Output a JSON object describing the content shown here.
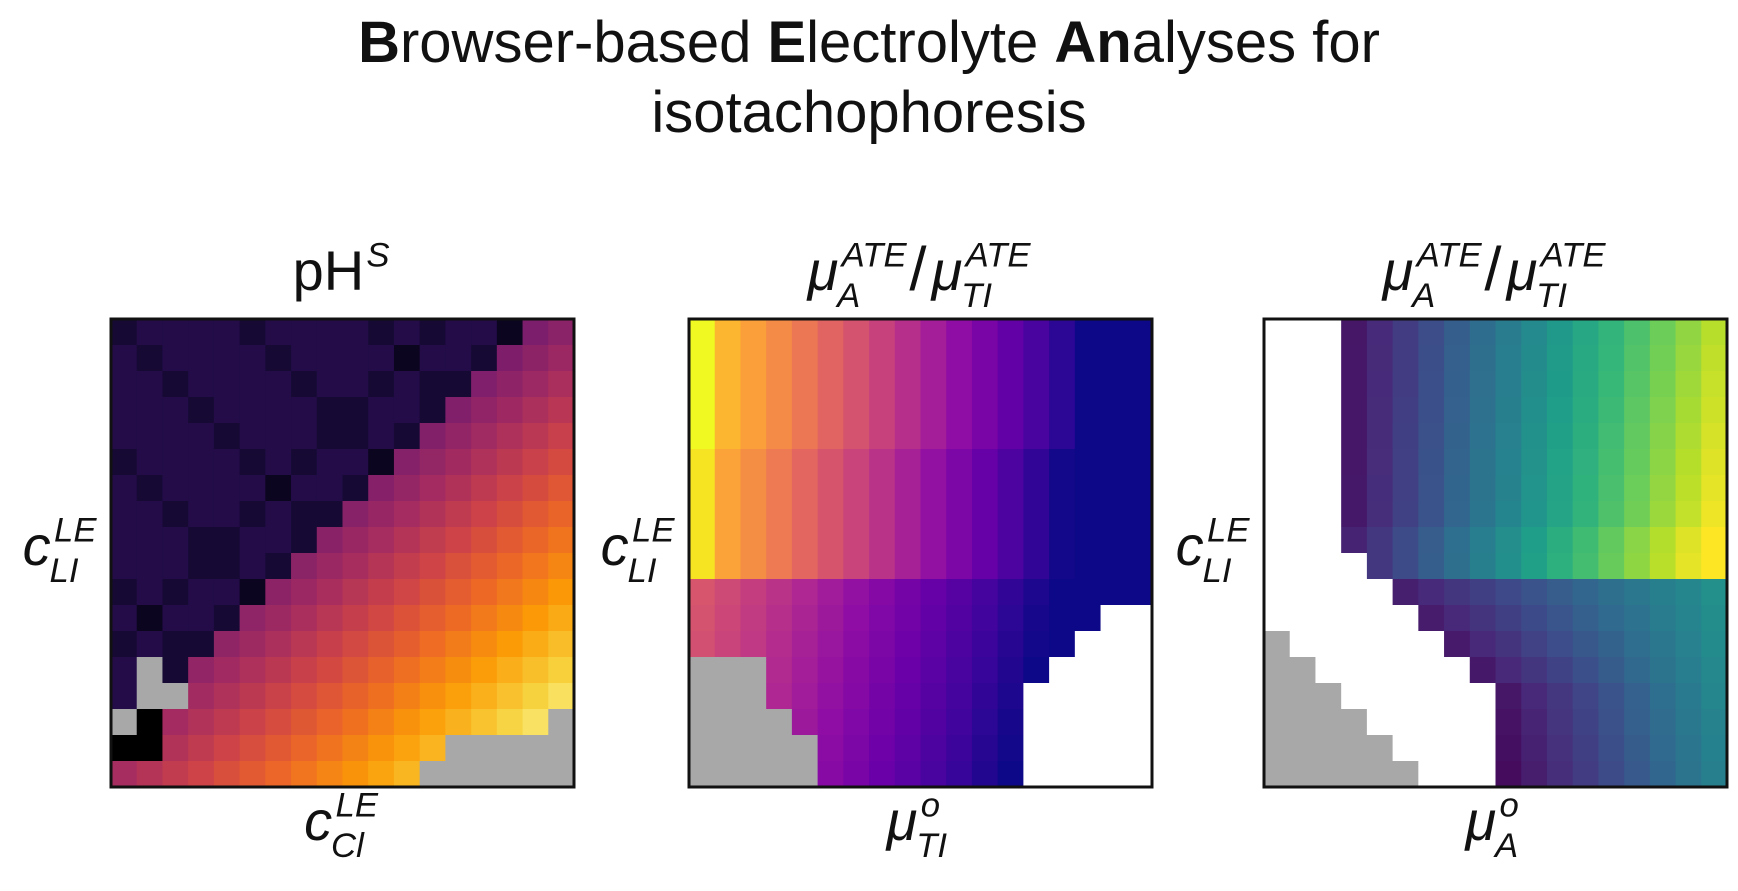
{
  "header": {
    "title_line1": [
      {
        "text": "B",
        "bold": true
      },
      {
        "text": "rowser-based "
      },
      {
        "text": "E",
        "bold": true
      },
      {
        "text": "lectrolyte "
      },
      {
        "text": "An",
        "bold": true
      },
      {
        "text": "alyses for"
      }
    ],
    "title_line2": "isotachophoresis"
  },
  "panels": [
    {
      "title": [
        {
          "base": "pH",
          "sup": "S"
        }
      ],
      "y_label": {
        "base": "c",
        "sup": "LE",
        "sub": "LI"
      },
      "x_label": {
        "base": "c",
        "sup": "LE",
        "sub": "Cl"
      }
    },
    {
      "title": [
        {
          "base": "μ",
          "sup": "ATE",
          "sub": "A"
        },
        {
          "base": "/"
        },
        {
          "base": "μ",
          "sup": "ATE",
          "sub": "TI"
        }
      ],
      "y_label": {
        "base": "c",
        "sup": "LE",
        "sub": "LI"
      },
      "x_label": {
        "base": "μ",
        "sup": "o",
        "sub": "TI"
      }
    },
    {
      "title": [
        {
          "base": "μ",
          "sup": "ATE",
          "sub": "A"
        },
        {
          "base": "/"
        },
        {
          "base": "μ",
          "sup": "ATE",
          "sub": "TI"
        }
      ],
      "y_label": {
        "base": "c",
        "sup": "LE",
        "sub": "LI"
      },
      "x_label": {
        "base": "μ",
        "sup": "o",
        "sub": "A"
      }
    }
  ]
}
